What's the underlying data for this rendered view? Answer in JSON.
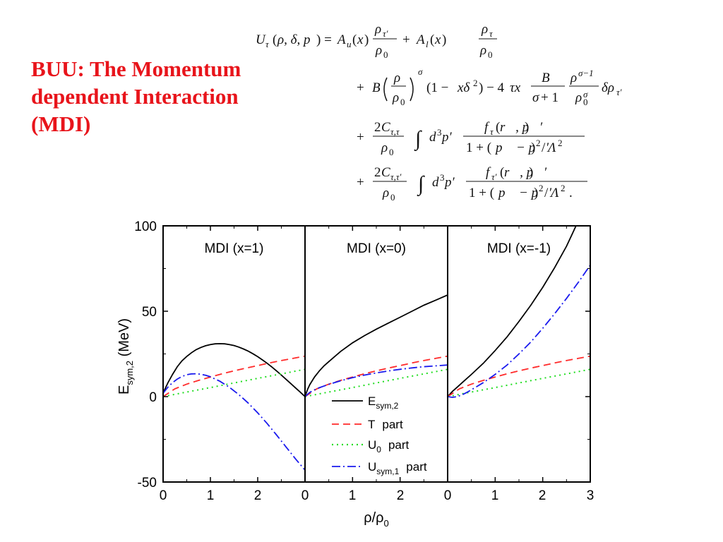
{
  "slide": {
    "title_lines": [
      "BUU: The Momentum",
      "dependent Interaction",
      "(MDI)"
    ],
    "title_color": "#e8141b"
  },
  "colors": {
    "esym": "#000000",
    "t_part": "#ff2a2a",
    "u0_part": "#22dd22",
    "usym1_part": "#1a1aee"
  },
  "chart_data": {
    "type": "line",
    "layout": "three-panel",
    "ylabel_main": "E",
    "ylabel_sub": "sym,2",
    "ylabel_unit": " (MeV)",
    "xlabel_main": "ρ/ρ",
    "xlabel_sub": "0",
    "ylim": [
      -50,
      100
    ],
    "yticks": [
      "100",
      "50",
      "0",
      "-50"
    ],
    "xticks": [
      "0",
      "1",
      "2",
      "0",
      "1",
      "2",
      "0",
      "1",
      "2",
      "3"
    ],
    "legend": [
      {
        "main": "E",
        "sub": "sym,2",
        "suffix": "",
        "style": "solid",
        "color": "#000000"
      },
      {
        "main": "T",
        "sub": "",
        "suffix": "part",
        "style": "dashed",
        "color": "#ff2a2a"
      },
      {
        "main": "U",
        "sub": "0",
        "suffix": "part",
        "style": "dotted",
        "color": "#22dd22"
      },
      {
        "main": "U",
        "sub": "sym,1",
        "suffix": "part",
        "style": "dashdot",
        "color": "#1a1aee"
      }
    ],
    "panels": [
      {
        "title": "MDI (x=1)",
        "xlim": [
          0,
          3
        ],
        "series": [
          {
            "key": "esym",
            "x": [
              0,
              0.05,
              0.1,
              0.2,
              0.3,
              0.4,
              0.5,
              0.6,
              0.7,
              0.8,
              0.9,
              1.0,
              1.1,
              1.2,
              1.3,
              1.4,
              1.5,
              1.6,
              1.7,
              1.8,
              1.9,
              2.0,
              2.1,
              2.2,
              2.3,
              2.4,
              2.5,
              2.6,
              2.7,
              2.8,
              2.9,
              3.0
            ],
            "y": [
              2,
              5,
              8,
              13,
              17.5,
              21,
              23.5,
              25.7,
              27.5,
              28.8,
              29.8,
              30.5,
              30.9,
              31,
              30.9,
              30.5,
              29.9,
              29,
              27.9,
              26.6,
              25.1,
              23.4,
              21.5,
              19.5,
              17.3,
              15,
              12.6,
              10.1,
              7.6,
              5.1,
              2.6,
              0
            ]
          },
          {
            "key": "t_part",
            "x": [
              0,
              0.25,
              0.5,
              0.75,
              1,
              1.25,
              1.5,
              1.75,
              2,
              2.25,
              2.5,
              2.75,
              3
            ],
            "y": [
              0,
              4.6,
              7.3,
              9.5,
              11.5,
              13.4,
              15.1,
              16.7,
              18.2,
              19.7,
              21.1,
              22.4,
              23.7
            ]
          },
          {
            "key": "u0_part",
            "x": [
              0,
              0.5,
              1,
              1.5,
              2,
              2.5,
              3
            ],
            "y": [
              0,
              2.7,
              5.3,
              8,
              10.7,
              13.3,
              16
            ]
          },
          {
            "key": "usym1_part",
            "x": [
              0,
              0.1,
              0.2,
              0.3,
              0.4,
              0.5,
              0.6,
              0.7,
              0.8,
              0.9,
              1.0,
              1.2,
              1.4,
              1.6,
              1.8,
              2.0,
              2.2,
              2.4,
              2.6,
              2.8,
              3.0
            ],
            "y": [
              2,
              5.5,
              8.2,
              10.3,
              11.8,
              12.8,
              13.3,
              13.4,
              13.1,
              12.5,
              11.6,
              9,
              5.5,
              1.2,
              -3.8,
              -9.5,
              -15.8,
              -22.5,
              -29.5,
              -36.5,
              -43
            ]
          }
        ]
      },
      {
        "title": "MDI (x=0)",
        "xlim": [
          0,
          3
        ],
        "series": [
          {
            "key": "esym",
            "x": [
              0,
              0.05,
              0.1,
              0.2,
              0.3,
              0.4,
              0.5,
              0.75,
              1,
              1.25,
              1.5,
              1.75,
              2,
              2.25,
              2.5,
              2.75,
              3
            ],
            "y": [
              0,
              4,
              7,
              11.5,
              15,
              18,
              20.5,
              26.5,
              31.5,
              35.7,
              39.5,
              43,
              46.5,
              50,
              53.5,
              56.5,
              59.5
            ]
          },
          {
            "key": "t_part",
            "x": [
              0,
              0.25,
              0.5,
              0.75,
              1,
              1.25,
              1.5,
              1.75,
              2,
              2.25,
              2.5,
              2.75,
              3
            ],
            "y": [
              0,
              4.6,
              7.3,
              9.5,
              11.5,
              13.4,
              15.1,
              16.7,
              18.2,
              19.7,
              21.1,
              22.4,
              23.7
            ]
          },
          {
            "key": "u0_part",
            "x": [
              0,
              0.5,
              1,
              1.5,
              2,
              2.5,
              3
            ],
            "y": [
              0,
              2.7,
              5.3,
              8,
              10.7,
              13.3,
              16
            ]
          },
          {
            "key": "usym1_part",
            "x": [
              0,
              0.1,
              0.2,
              0.3,
              0.5,
              0.75,
              1,
              1.25,
              1.5,
              1.75,
              2,
              2.25,
              2.5,
              2.75,
              3
            ],
            "y": [
              0,
              2.5,
              4,
              5.2,
              7.2,
              9.3,
              11.1,
              12.6,
              13.9,
              15,
              16,
              16.8,
              17.5,
              18,
              18.5
            ]
          }
        ]
      },
      {
        "title": "MDI (x=-1)",
        "xlim": [
          0,
          3
        ],
        "series": [
          {
            "key": "esym",
            "x": [
              0,
              0.1,
              0.2,
              0.3,
              0.5,
              0.75,
              1,
              1.25,
              1.5,
              1.75,
              2,
              2.25,
              2.5,
              2.6,
              2.7
            ],
            "y": [
              0,
              3,
              5.5,
              8,
              13,
              19.5,
              27,
              35,
              44,
              53.5,
              64,
              75.5,
              88,
              94,
              100
            ]
          },
          {
            "key": "t_part",
            "x": [
              0,
              0.25,
              0.5,
              0.75,
              1,
              1.25,
              1.5,
              1.75,
              2,
              2.25,
              2.5,
              2.75,
              3
            ],
            "y": [
              0,
              4.6,
              7.3,
              9.5,
              11.5,
              13.4,
              15.1,
              16.7,
              18.2,
              19.7,
              21.1,
              22.4,
              23.7
            ]
          },
          {
            "key": "u0_part",
            "x": [
              0,
              0.5,
              1,
              1.5,
              2,
              2.5,
              3
            ],
            "y": [
              0,
              2.7,
              5.3,
              8,
              10.7,
              13.3,
              16
            ]
          },
          {
            "key": "usym1_part",
            "x": [
              0,
              0.1,
              0.2,
              0.3,
              0.4,
              0.5,
              0.75,
              1,
              1.25,
              1.5,
              1.75,
              2,
              2.25,
              2.5,
              2.75,
              3
            ],
            "y": [
              0,
              -0.4,
              0,
              1,
              2.4,
              4,
              8.2,
              13,
              18.5,
              25,
              32,
              40,
              48.5,
              57.5,
              67,
              77
            ]
          }
        ]
      }
    ]
  }
}
